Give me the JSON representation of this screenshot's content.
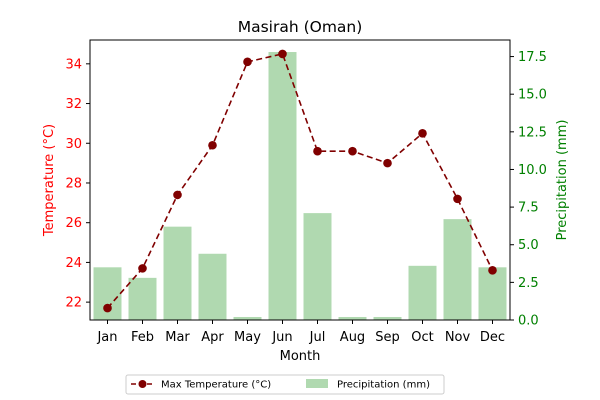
{
  "chart_data": {
    "type": "bar+line",
    "title": "Masirah (Oman)",
    "xlabel": "Month",
    "categories": [
      "Jan",
      "Feb",
      "Mar",
      "Apr",
      "May",
      "Jun",
      "Jul",
      "Aug",
      "Sep",
      "Oct",
      "Nov",
      "Dec"
    ],
    "y_left": {
      "label": "Temperature (°C)",
      "color": "#ff0000",
      "ylim": [
        21.1,
        35.2
      ],
      "ticks": [
        22,
        24,
        26,
        28,
        30,
        32,
        34
      ]
    },
    "y_right": {
      "label": "Precipitation (mm)",
      "color": "#008000",
      "ylim": [
        0,
        18.6
      ],
      "ticks": [
        0.0,
        2.5,
        5.0,
        7.5,
        10.0,
        12.5,
        15.0,
        17.5
      ],
      "tick_labels": [
        "0.0",
        "2.5",
        "5.0",
        "7.5",
        "10.0",
        "12.5",
        "15.0",
        "17.5"
      ]
    },
    "series": [
      {
        "name": "Max Temperature (°C)",
        "kind": "line",
        "axis": "left",
        "color": "#800000",
        "line_style": "dashed",
        "marker": "circle",
        "values": [
          21.7,
          23.7,
          27.4,
          29.9,
          34.1,
          34.5,
          29.6,
          29.6,
          29.0,
          30.5,
          27.2,
          23.6
        ]
      },
      {
        "name": "Precipitation (mm)",
        "kind": "bar",
        "axis": "right",
        "color": "#b0d9b0",
        "values": [
          3.5,
          2.8,
          6.2,
          4.4,
          0.2,
          17.8,
          7.1,
          0.2,
          0.2,
          3.6,
          6.7,
          3.5
        ]
      }
    ],
    "legend": {
      "placement": "bottom-center",
      "columns": 2
    },
    "grid": false
  }
}
